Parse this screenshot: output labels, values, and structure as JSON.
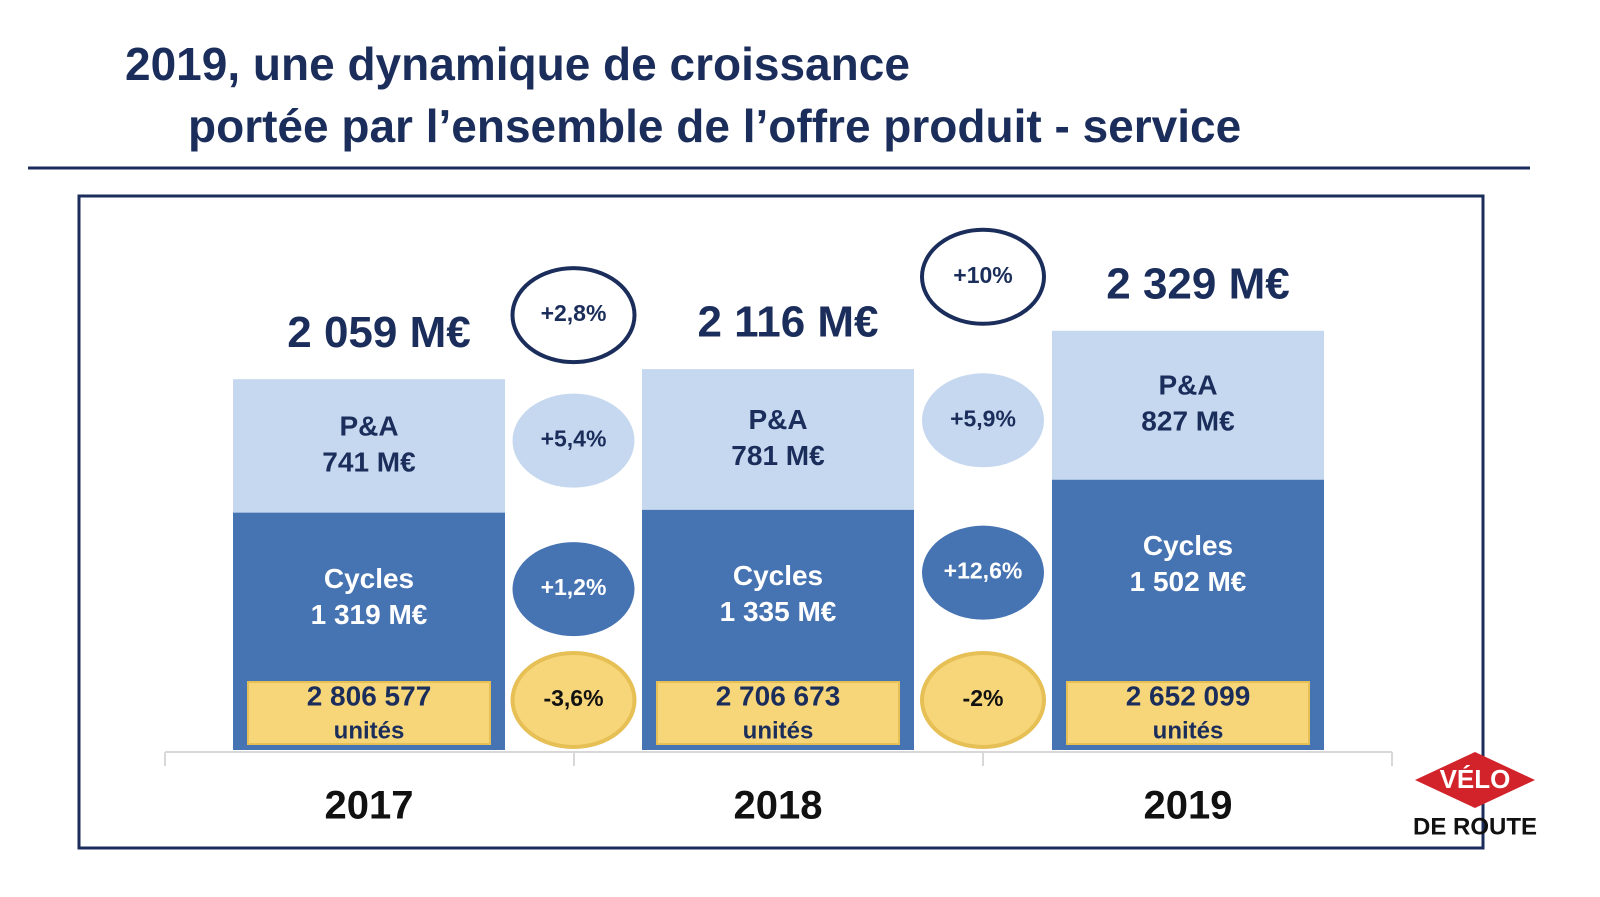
{
  "chart_data": {
    "type": "bar",
    "stacked": true,
    "title": "2019, une dynamique de croissance",
    "subtitle": "portée par l’ensemble de l’offre produit - service",
    "categories": [
      "2017",
      "2018",
      "2019"
    ],
    "ylim": [
      0,
      2900
    ],
    "series": [
      {
        "name": "Cycles",
        "color": "#4673b2",
        "values": [
          1319,
          1335,
          1502
        ],
        "value_labels": [
          "1 319 M€",
          "1 335 M€",
          "1 502 M€"
        ]
      },
      {
        "name": "P&A",
        "color": "#c6d8ef",
        "values": [
          741,
          781,
          827
        ],
        "value_labels": [
          "741 M€",
          "781 M€",
          "827 M€"
        ]
      }
    ],
    "totals": {
      "values": [
        2059,
        2116,
        2329
      ],
      "value_labels": [
        "2 059 M€",
        "2 116 M€",
        "2 329 M€"
      ]
    },
    "units": {
      "label": "unités",
      "color": "#f7d67a",
      "values": [
        2806577,
        2706673,
        2652099
      ],
      "value_labels": [
        "2 806 577",
        "2 706 673",
        "2 652 099"
      ]
    },
    "growth": {
      "total": {
        "values": [
          2.8,
          10
        ],
        "value_labels": [
          "+2,8%",
          "+10%"
        ]
      },
      "pa": {
        "values": [
          5.4,
          5.9
        ],
        "value_labels": [
          "+5,4%",
          "+5,9%"
        ]
      },
      "cycles": {
        "values": [
          1.2,
          12.6
        ],
        "value_labels": [
          "+1,2%",
          "+12,6%"
        ]
      },
      "units": {
        "values": [
          -3.6,
          -2
        ],
        "value_labels": [
          "-3,6%",
          "-2%"
        ]
      }
    },
    "logo": {
      "top": "VÉLO",
      "bottom": "DE ROUTE"
    }
  }
}
